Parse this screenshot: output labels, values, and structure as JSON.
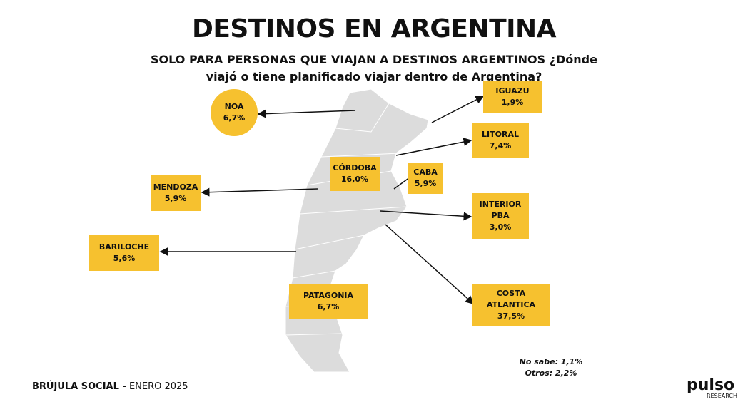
{
  "header": {
    "title": "DESTINOS EN ARGENTINA",
    "subtitle": "SOLO PARA PERSONAS QUE VIAJAN A DESTINOS ARGENTINOS ¿Dónde viajó o tiene planificado viajar dentro de Argentina?"
  },
  "destinations": [
    {
      "name": "NOA",
      "value": "6,7%"
    },
    {
      "name": "IGUAZU",
      "value": "1,9%"
    },
    {
      "name": "LITORAL",
      "value": "7,4%"
    },
    {
      "name": "CÓRDOBA",
      "value": "16,0%"
    },
    {
      "name": "CABA",
      "value": "5,9%"
    },
    {
      "name": "MENDOZA",
      "value": "5,9%"
    },
    {
      "name": "INTERIOR PBA",
      "value": "3,0%"
    },
    {
      "name": "BARILOCHE",
      "value": "5,6%"
    },
    {
      "name": "PATAGONIA",
      "value": "6,7%"
    },
    {
      "name": "COSTA ATLANTICA",
      "value": "37,5%"
    }
  ],
  "notes": [
    "No sabe: 1,1%",
    "Otros: 2,2%"
  ],
  "footer": {
    "source": "BRÚJULA SOCIAL -",
    "date": "ENERO 2025",
    "logo": "pulso",
    "logo_sub": "RESEARCH"
  }
}
